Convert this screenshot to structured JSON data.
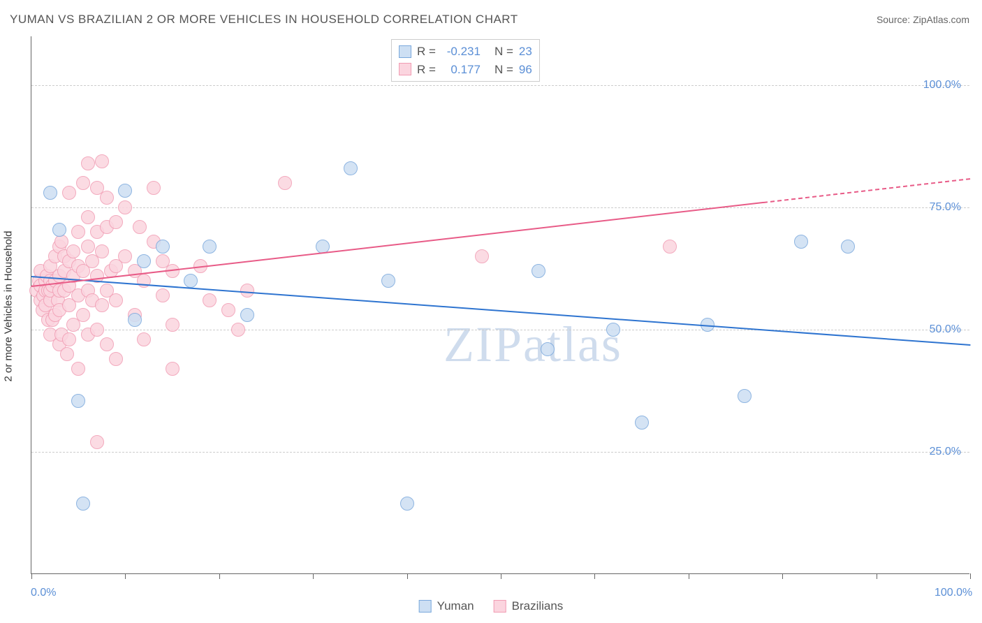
{
  "title": "YUMAN VS BRAZILIAN 2 OR MORE VEHICLES IN HOUSEHOLD CORRELATION CHART",
  "source_prefix": "Source: ",
  "source_name": "ZipAtlas.com",
  "ylabel": "2 or more Vehicles in Household",
  "watermark": "ZIPatlas",
  "colors": {
    "blue_fill": "#cddff3",
    "blue_stroke": "#7aa8dc",
    "blue_line": "#2e74d0",
    "pink_fill": "#fbd5df",
    "pink_stroke": "#f19cb3",
    "pink_line": "#e85b87",
    "axis_label": "#5b8fd6",
    "grid": "#cccccc"
  },
  "chart": {
    "type": "scatter",
    "xlim": [
      0,
      100
    ],
    "ylim": [
      0,
      110
    ],
    "y_gridlines": [
      25,
      50,
      75,
      100
    ],
    "y_tick_labels": [
      "25.0%",
      "50.0%",
      "75.0%",
      "100.0%"
    ],
    "x_ticks": [
      0,
      10,
      20,
      30,
      40,
      50,
      60,
      70,
      80,
      90,
      100
    ],
    "x_tick_labels": {
      "0": "0.0%",
      "100": "100.0%"
    },
    "point_radius": 10
  },
  "legend_stats": {
    "rows": [
      {
        "swatch_fill": "#cddff3",
        "swatch_stroke": "#7aa8dc",
        "r_label": "R =",
        "r_value": "-0.231",
        "n_label": "N =",
        "n_value": "23"
      },
      {
        "swatch_fill": "#fbd5df",
        "swatch_stroke": "#f19cb3",
        "r_label": "R =",
        "r_value": "0.177",
        "n_label": "N =",
        "n_value": "96"
      }
    ]
  },
  "bottom_legend": [
    {
      "swatch_fill": "#cddff3",
      "swatch_stroke": "#7aa8dc",
      "label": "Yuman"
    },
    {
      "swatch_fill": "#fbd5df",
      "swatch_stroke": "#f19cb3",
      "label": "Brazilians"
    }
  ],
  "series": {
    "yuman": {
      "color_fill": "#cddff3",
      "color_stroke": "#7aa8dc",
      "regression": {
        "x1": 0,
        "y1": 61,
        "x2": 100,
        "y2": 47,
        "color": "#2e74d0",
        "dashed_after_x": null
      },
      "points": [
        [
          2,
          78
        ],
        [
          3,
          70.5
        ],
        [
          5,
          35.5
        ],
        [
          5.5,
          14.5
        ],
        [
          10,
          78.5
        ],
        [
          11,
          52
        ],
        [
          12,
          64
        ],
        [
          14,
          67
        ],
        [
          17,
          60
        ],
        [
          19,
          67
        ],
        [
          23,
          53
        ],
        [
          31,
          67
        ],
        [
          34,
          83
        ],
        [
          38,
          60
        ],
        [
          40,
          14.5
        ],
        [
          54,
          62
        ],
        [
          55,
          46
        ],
        [
          62,
          50
        ],
        [
          65,
          31
        ],
        [
          72,
          51
        ],
        [
          76,
          36.5
        ],
        [
          82,
          68
        ],
        [
          87,
          67
        ]
      ]
    },
    "brazilians": {
      "color_fill": "#fbd5df",
      "color_stroke": "#f19cb3",
      "regression": {
        "x1": 0,
        "y1": 59,
        "x2": 100,
        "y2": 81,
        "color": "#e85b87",
        "dashed_after_x": 78
      },
      "points": [
        [
          0.5,
          58
        ],
        [
          0.8,
          60
        ],
        [
          1,
          56
        ],
        [
          1,
          59
        ],
        [
          1,
          62
        ],
        [
          1.2,
          54
        ],
        [
          1.3,
          57
        ],
        [
          1.5,
          58
        ],
        [
          1.5,
          60
        ],
        [
          1.5,
          55
        ],
        [
          1.6,
          61
        ],
        [
          1.8,
          52
        ],
        [
          1.8,
          58
        ],
        [
          2,
          49
        ],
        [
          2,
          56
        ],
        [
          2,
          58
        ],
        [
          2,
          60
        ],
        [
          2,
          63
        ],
        [
          2.2,
          52
        ],
        [
          2.2,
          59
        ],
        [
          2.5,
          60
        ],
        [
          2.5,
          53
        ],
        [
          2.5,
          65
        ],
        [
          2.8,
          56
        ],
        [
          3,
          47
        ],
        [
          3,
          54
        ],
        [
          3,
          58
        ],
        [
          3,
          61
        ],
        [
          3,
          67
        ],
        [
          3.2,
          49
        ],
        [
          3.2,
          68
        ],
        [
          3.5,
          58
        ],
        [
          3.5,
          62
        ],
        [
          3.5,
          65
        ],
        [
          3.8,
          45
        ],
        [
          4,
          48
        ],
        [
          4,
          55
        ],
        [
          4,
          59
        ],
        [
          4,
          64
        ],
        [
          4,
          78
        ],
        [
          4.5,
          51
        ],
        [
          4.5,
          61
        ],
        [
          4.5,
          66
        ],
        [
          5,
          42
        ],
        [
          5,
          57
        ],
        [
          5,
          63
        ],
        [
          5,
          70
        ],
        [
          5.5,
          53
        ],
        [
          5.5,
          62
        ],
        [
          5.5,
          80
        ],
        [
          6,
          49
        ],
        [
          6,
          58
        ],
        [
          6,
          67
        ],
        [
          6,
          73
        ],
        [
          6,
          84
        ],
        [
          6.5,
          56
        ],
        [
          6.5,
          64
        ],
        [
          7,
          27
        ],
        [
          7,
          50
        ],
        [
          7,
          61
        ],
        [
          7,
          70
        ],
        [
          7,
          79
        ],
        [
          7.5,
          55
        ],
        [
          7.5,
          66
        ],
        [
          7.5,
          84.5
        ],
        [
          8,
          47
        ],
        [
          8,
          58
        ],
        [
          8,
          71
        ],
        [
          8,
          77
        ],
        [
          8.5,
          62
        ],
        [
          9,
          44
        ],
        [
          9,
          56
        ],
        [
          9,
          63
        ],
        [
          9,
          72
        ],
        [
          10,
          65
        ],
        [
          10,
          75
        ],
        [
          11,
          53
        ],
        [
          11,
          62
        ],
        [
          11.5,
          71
        ],
        [
          12,
          48
        ],
        [
          12,
          60
        ],
        [
          13,
          79
        ],
        [
          13,
          68
        ],
        [
          14,
          57
        ],
        [
          14,
          64
        ],
        [
          15,
          51
        ],
        [
          15,
          42
        ],
        [
          15,
          62
        ],
        [
          18,
          63
        ],
        [
          19,
          56
        ],
        [
          21,
          54
        ],
        [
          22,
          50
        ],
        [
          23,
          58
        ],
        [
          27,
          80
        ],
        [
          48,
          65
        ],
        [
          68,
          67
        ]
      ]
    }
  }
}
